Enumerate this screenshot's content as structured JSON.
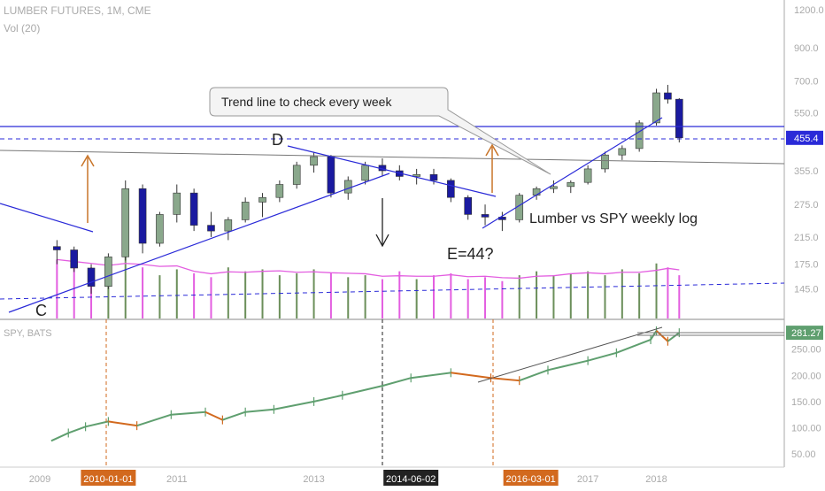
{
  "chart_data": [
    {
      "type": "candlestick",
      "title": "LUMBER FUTURES, 1M, CME",
      "volume_label": "Vol (20)",
      "y_scale": "log",
      "ylim": [
        120,
        1250
      ],
      "y_ticks": [
        "1200.0",
        "900.0",
        "700.0",
        "550.0",
        "455.4",
        "355.0",
        "275.0",
        "215.0",
        "175.0",
        "145.0"
      ],
      "x_ticks": [
        "2009",
        "2010-01-01",
        "2011",
        "2013",
        "2014-06-02",
        "2016-03-01",
        "2017",
        "2018"
      ],
      "last_price": "455.4",
      "candles": [
        {
          "d": "2009-04",
          "o": 200,
          "h": 210,
          "l": 175,
          "c": 195
        },
        {
          "d": "2009-07",
          "o": 195,
          "h": 200,
          "l": 165,
          "c": 170
        },
        {
          "d": "2009-10",
          "o": 170,
          "h": 175,
          "l": 140,
          "c": 148
        },
        {
          "d": "2010-01",
          "o": 148,
          "h": 190,
          "l": 145,
          "c": 185
        },
        {
          "d": "2010-04",
          "o": 185,
          "h": 330,
          "l": 180,
          "c": 310
        },
        {
          "d": "2010-07",
          "o": 310,
          "h": 320,
          "l": 190,
          "c": 205
        },
        {
          "d": "2010-10",
          "o": 205,
          "h": 260,
          "l": 200,
          "c": 255
        },
        {
          "d": "2011-01",
          "o": 255,
          "h": 320,
          "l": 240,
          "c": 300
        },
        {
          "d": "2011-04",
          "o": 300,
          "h": 310,
          "l": 225,
          "c": 235
        },
        {
          "d": "2011-07",
          "o": 235,
          "h": 260,
          "l": 215,
          "c": 225
        },
        {
          "d": "2011-10",
          "o": 225,
          "h": 250,
          "l": 210,
          "c": 245
        },
        {
          "d": "2012-01",
          "o": 245,
          "h": 290,
          "l": 240,
          "c": 280
        },
        {
          "d": "2012-04",
          "o": 280,
          "h": 300,
          "l": 250,
          "c": 290
        },
        {
          "d": "2012-07",
          "o": 290,
          "h": 330,
          "l": 280,
          "c": 320
        },
        {
          "d": "2012-10",
          "o": 320,
          "h": 380,
          "l": 310,
          "c": 370
        },
        {
          "d": "2013-01",
          "o": 370,
          "h": 410,
          "l": 350,
          "c": 395
        },
        {
          "d": "2013-04",
          "o": 395,
          "h": 400,
          "l": 290,
          "c": 300
        },
        {
          "d": "2013-07",
          "o": 300,
          "h": 340,
          "l": 285,
          "c": 330
        },
        {
          "d": "2013-10",
          "o": 330,
          "h": 380,
          "l": 320,
          "c": 370
        },
        {
          "d": "2014-01",
          "o": 370,
          "h": 390,
          "l": 340,
          "c": 355
        },
        {
          "d": "2014-04",
          "o": 355,
          "h": 370,
          "l": 330,
          "c": 340
        },
        {
          "d": "2014-07",
          "o": 340,
          "h": 360,
          "l": 320,
          "c": 345
        },
        {
          "d": "2014-10",
          "o": 345,
          "h": 360,
          "l": 320,
          "c": 330
        },
        {
          "d": "2015-01",
          "o": 330,
          "h": 335,
          "l": 280,
          "c": 290
        },
        {
          "d": "2015-04",
          "o": 290,
          "h": 295,
          "l": 245,
          "c": 255
        },
        {
          "d": "2015-07",
          "o": 255,
          "h": 275,
          "l": 235,
          "c": 250
        },
        {
          "d": "2015-10",
          "o": 250,
          "h": 260,
          "l": 225,
          "c": 245
        },
        {
          "d": "2016-01",
          "o": 245,
          "h": 300,
          "l": 240,
          "c": 295
        },
        {
          "d": "2016-04",
          "o": 295,
          "h": 315,
          "l": 285,
          "c": 310
        },
        {
          "d": "2016-07",
          "o": 310,
          "h": 330,
          "l": 300,
          "c": 315
        },
        {
          "d": "2016-10",
          "o": 315,
          "h": 330,
          "l": 300,
          "c": 325
        },
        {
          "d": "2017-01",
          "o": 325,
          "h": 370,
          "l": 320,
          "c": 360
        },
        {
          "d": "2017-04",
          "o": 360,
          "h": 410,
          "l": 350,
          "c": 400
        },
        {
          "d": "2017-07",
          "o": 400,
          "h": 430,
          "l": 385,
          "c": 420
        },
        {
          "d": "2017-10",
          "o": 420,
          "h": 520,
          "l": 410,
          "c": 510
        },
        {
          "d": "2018-01",
          "o": 510,
          "h": 660,
          "l": 500,
          "c": 640
        },
        {
          "d": "2018-03",
          "o": 640,
          "h": 680,
          "l": 590,
          "c": 610
        },
        {
          "d": "2018-05",
          "o": 610,
          "h": 615,
          "l": 440,
          "c": 455.4
        }
      ],
      "volume_bars": [
        150,
        140,
        130,
        120,
        170,
        130,
        110,
        125,
        115,
        105,
        130,
        120,
        125,
        110,
        115,
        125,
        115,
        105,
        110,
        100,
        120,
        100,
        110,
        115,
        100,
        105,
        95,
        110,
        120,
        110,
        115,
        120,
        110,
        125,
        115,
        140,
        130,
        110
      ],
      "volume_ma": "pink",
      "annotations": [
        {
          "text": "Trend line to check every week"
        },
        {
          "text": "D"
        },
        {
          "text": "C"
        },
        {
          "text": "E=44?"
        },
        {
          "text": "Lumber vs SPY weekly log"
        }
      ]
    },
    {
      "type": "ohlc",
      "title": "SPY, BATS",
      "ylim": [
        30,
        300
      ],
      "y_ticks": [
        "281.27",
        "250.00",
        "200.00",
        "150.00",
        "100.00",
        "50.00"
      ],
      "last_price": "281.27",
      "values": [
        {
          "d": "2009-03",
          "v": 75
        },
        {
          "d": "2009-06",
          "v": 90
        },
        {
          "d": "2009-09",
          "v": 102
        },
        {
          "d": "2010-01",
          "v": 112
        },
        {
          "d": "2010-06",
          "v": 104
        },
        {
          "d": "2010-12",
          "v": 125
        },
        {
          "d": "2011-06",
          "v": 130
        },
        {
          "d": "2011-09",
          "v": 115
        },
        {
          "d": "2012-01",
          "v": 130
        },
        {
          "d": "2012-06",
          "v": 135
        },
        {
          "d": "2013-01",
          "v": 150
        },
        {
          "d": "2013-06",
          "v": 162
        },
        {
          "d": "2014-01",
          "v": 180
        },
        {
          "d": "2014-06",
          "v": 195
        },
        {
          "d": "2015-01",
          "v": 205
        },
        {
          "d": "2015-08",
          "v": 195
        },
        {
          "d": "2016-01",
          "v": 190
        },
        {
          "d": "2016-06",
          "v": 210
        },
        {
          "d": "2017-01",
          "v": 228
        },
        {
          "d": "2017-06",
          "v": 243
        },
        {
          "d": "2017-12",
          "v": 268
        },
        {
          "d": "2018-01",
          "v": 285
        },
        {
          "d": "2018-03",
          "v": 265
        },
        {
          "d": "2018-05",
          "v": 281.27
        }
      ]
    }
  ],
  "colors": {
    "up_candle": "#8aa88c",
    "down_candle": "#1a1aa0",
    "trend_line": "#2a2ad8",
    "volume_up": "#6b8f5a",
    "volume_down": "#e35ee0",
    "arrow_orange": "#c87428",
    "spy_up": "#5f9f6f",
    "spy_down": "#d2691e"
  }
}
